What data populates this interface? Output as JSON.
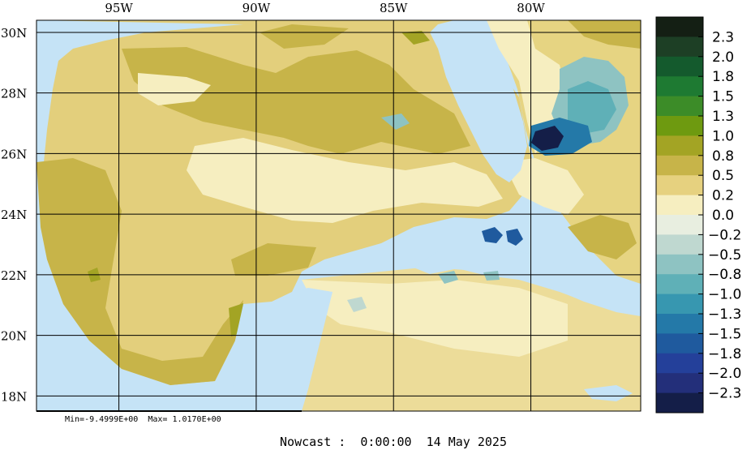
{
  "map": {
    "lon_labels": [
      {
        "lon": -95,
        "text": "95W"
      },
      {
        "lon": -90,
        "text": "90W"
      },
      {
        "lon": -85,
        "text": "85W"
      },
      {
        "lon": -80,
        "text": "80W"
      }
    ],
    "lat_labels": [
      {
        "lat": 30,
        "text": "30N"
      },
      {
        "lat": 28,
        "text": "28N"
      },
      {
        "lat": 26,
        "text": "26N"
      },
      {
        "lat": 24,
        "text": "24N"
      },
      {
        "lat": 22,
        "text": "22N"
      },
      {
        "lat": 20,
        "text": "20N"
      },
      {
        "lat": 18,
        "text": "18N"
      }
    ],
    "extent": {
      "lon_min": -98,
      "lon_max": -76,
      "lat_min": 17.5,
      "lat_max": 30.4
    }
  },
  "legend": {
    "colors": [
      "#141f14",
      "#1d3f25",
      "#145a2d",
      "#1e7a32",
      "#3c8c28",
      "#6e9a10",
      "#a3a424",
      "#c7b449",
      "#e6d17f",
      "#f6eec0",
      "#e8eee0",
      "#bfd8d0",
      "#8ec3c2",
      "#5fb0b7",
      "#3797b0",
      "#2479a8",
      "#1f5a9e",
      "#24409a",
      "#232f7a",
      "#141e48"
    ],
    "labels": [
      "2.3",
      "2.0",
      "1.8",
      "1.5",
      "1.3",
      "1.0",
      "0.8",
      "0.5",
      "0.2",
      "0.0",
      "-0.2",
      "-0.5",
      "-0.8",
      "-1.0",
      "-1.3",
      "-1.5",
      "-1.8",
      "-2.0",
      "-2.3"
    ]
  },
  "stats": {
    "min_max": "Min=-9.4999E+00  Max= 1.0170E+00"
  },
  "caption": "Nowcast :  0:00:00  14 May 2025",
  "colors": {
    "land": "#c5e3f6",
    "grid": "#000000"
  }
}
